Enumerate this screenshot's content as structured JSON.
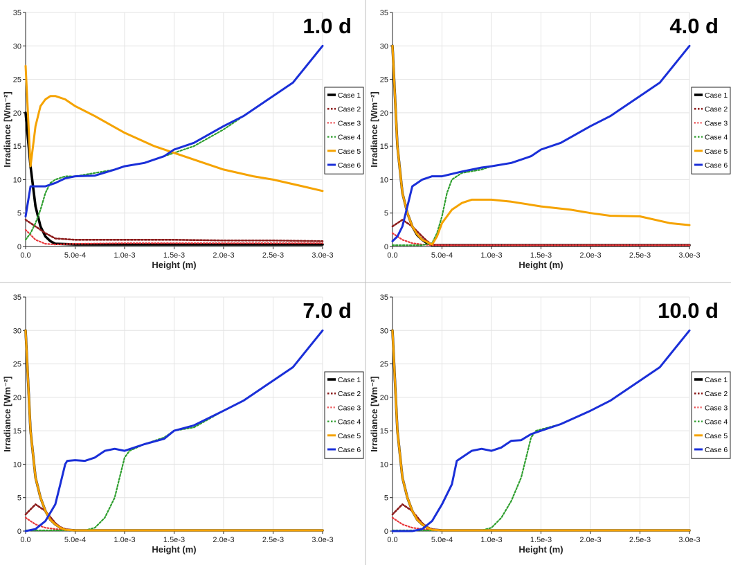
{
  "colors": {
    "Case 1": "#000000",
    "Case 2": "#8b1a1a",
    "Case 3": "#e8363a",
    "Case 4": "#2e9e2e",
    "Case 5": "#f5a300",
    "Case 6": "#1a2fd8"
  },
  "chart_data": [
    {
      "type": "line",
      "title": "1.0 d",
      "xlabel": "Height (m)",
      "ylabel": "Irradiance [Wm⁻²]",
      "xlim": [
        0,
        0.003
      ],
      "ylim": [
        0,
        35
      ],
      "xticks": [
        "0.0",
        "5.0e-4",
        "1.0e-3",
        "1.5e-3",
        "2.0e-3",
        "2.5e-3",
        "3.0e-3"
      ],
      "yticks": [
        "0",
        "5",
        "10",
        "15",
        "20",
        "25",
        "30",
        "35"
      ],
      "grid": true,
      "legend_position": "right",
      "series": [
        {
          "name": "Case 1",
          "x": [
            0,
            5e-05,
            0.0001,
            0.00015,
            0.0002,
            0.00025,
            0.0003,
            0.0005,
            0.001,
            0.0015,
            0.002,
            0.0025,
            0.003
          ],
          "y": [
            20,
            12,
            6,
            3,
            1.5,
            0.8,
            0.4,
            0.3,
            0.3,
            0.3,
            0.3,
            0.3,
            0.3
          ]
        },
        {
          "name": "Case 2",
          "x": [
            0,
            0.0001,
            0.0002,
            0.0003,
            0.0005,
            0.001,
            0.0015,
            0.002,
            0.0025,
            0.003
          ],
          "y": [
            4,
            3,
            2,
            1.2,
            1,
            1,
            1,
            0.9,
            0.9,
            0.8
          ]
        },
        {
          "name": "Case 3",
          "x": [
            0,
            0.0001,
            0.0002,
            0.0003,
            0.0005,
            0.001,
            0.0015,
            0.002,
            0.0025,
            0.003
          ],
          "y": [
            2.5,
            1,
            0.4,
            0.3,
            0.4,
            0.5,
            0.5,
            0.5,
            0.5,
            0.5
          ]
        },
        {
          "name": "Case 4",
          "x": [
            0,
            5e-05,
            0.0001,
            0.00015,
            0.0002,
            0.00025,
            0.0003,
            0.0004,
            0.0005,
            0.0007,
            0.0009,
            0.001,
            0.0012,
            0.0014,
            0.0015,
            0.0017,
            0.002,
            0.0022,
            0.0025,
            0.0027,
            0.003
          ],
          "y": [
            1,
            2,
            3.5,
            5.5,
            8,
            9.5,
            10,
            10.5,
            10.5,
            11,
            11.5,
            12,
            12.5,
            13.5,
            14,
            15,
            17.5,
            19.5,
            22.5,
            24.5,
            30
          ]
        },
        {
          "name": "Case 5",
          "x": [
            0,
            5e-05,
            0.0001,
            0.00015,
            0.0002,
            0.00025,
            0.0003,
            0.0004,
            0.0005,
            0.0007,
            0.001,
            0.0013,
            0.0015,
            0.0018,
            0.002,
            0.0023,
            0.0025,
            0.0028,
            0.003
          ],
          "y": [
            27,
            12,
            18,
            21,
            22,
            22.5,
            22.5,
            22,
            21,
            19.5,
            17,
            15,
            14,
            12.5,
            11.5,
            10.5,
            10,
            9,
            8.3
          ]
        },
        {
          "name": "Case 6",
          "x": [
            0,
            5e-05,
            0.0001,
            0.0002,
            0.0003,
            0.0004,
            0.0005,
            0.0007,
            0.0009,
            0.001,
            0.0012,
            0.0014,
            0.0015,
            0.0017,
            0.002,
            0.0022,
            0.0025,
            0.0027,
            0.003
          ],
          "y": [
            4.5,
            9,
            9,
            9,
            9.5,
            10.2,
            10.5,
            10.6,
            11.5,
            12,
            12.5,
            13.5,
            14.5,
            15.5,
            18,
            19.5,
            22.5,
            24.5,
            30
          ]
        }
      ]
    },
    {
      "type": "line",
      "title": "4.0 d",
      "xlabel": "Height (m)",
      "ylabel": "Irradiance [Wm⁻²]",
      "xlim": [
        0,
        0.003
      ],
      "ylim": [
        0,
        35
      ],
      "xticks": [
        "0.0",
        "5.0e-4",
        "1.0e-3",
        "1.5e-3",
        "2.0e-3",
        "2.5e-3",
        "3.0e-3"
      ],
      "yticks": [
        "0",
        "5",
        "10",
        "15",
        "20",
        "25",
        "30",
        "35"
      ],
      "grid": true,
      "legend_position": "right",
      "series": [
        {
          "name": "Case 1",
          "x": [
            0,
            5e-05,
            0.0001,
            0.00015,
            0.0002,
            0.00025,
            0.0003,
            0.00035,
            0.0004,
            0.0005,
            0.001,
            0.002,
            0.003
          ],
          "y": [
            30,
            15,
            8,
            5,
            3,
            1.7,
            1,
            0.5,
            0.2,
            0.2,
            0.2,
            0.2,
            0.2
          ]
        },
        {
          "name": "Case 2",
          "x": [
            0,
            0.0001,
            0.0002,
            0.0003,
            0.00035,
            0.0004,
            0.0005,
            0.001,
            0.002,
            0.003
          ],
          "y": [
            3,
            4,
            3,
            1.5,
            0.8,
            0.3,
            0.2,
            0.2,
            0.2,
            0.2
          ]
        },
        {
          "name": "Case 3",
          "x": [
            0,
            5e-05,
            0.0001,
            0.0002,
            0.0003,
            0.0004,
            0.0005,
            0.001,
            0.002,
            0.003
          ],
          "y": [
            2,
            1.5,
            1,
            0.5,
            0.3,
            0.2,
            0.2,
            0.2,
            0.2,
            0.2
          ]
        },
        {
          "name": "Case 4",
          "x": [
            0,
            0.0002,
            0.0003,
            0.0004,
            0.00045,
            0.0005,
            0.00055,
            0.0006,
            0.0007,
            0.0009,
            0.001,
            0.0012,
            0.0014,
            0.0015,
            0.0017,
            0.002,
            0.0022,
            0.0025,
            0.0027,
            0.003
          ],
          "y": [
            0.2,
            0.2,
            0.2,
            0.5,
            2,
            4.5,
            8,
            10,
            11,
            11.5,
            12,
            12.5,
            13.5,
            14.5,
            15.5,
            18,
            19.5,
            22.5,
            24.5,
            30
          ]
        },
        {
          "name": "Case 5",
          "x": [
            0,
            5e-05,
            0.0001,
            0.00015,
            0.0002,
            0.00025,
            0.0003,
            0.0004,
            0.00045,
            0.0005,
            0.0006,
            0.0007,
            0.0008,
            0.001,
            0.0012,
            0.0015,
            0.0018,
            0.002,
            0.0022,
            0.0025,
            0.0028,
            0.003
          ],
          "y": [
            30,
            15,
            8,
            5,
            3,
            1.8,
            1,
            0.3,
            1.5,
            3.5,
            5.5,
            6.5,
            7,
            7,
            6.7,
            6,
            5.5,
            5,
            4.6,
            4.5,
            3.5,
            3.2
          ]
        },
        {
          "name": "Case 6",
          "x": [
            0,
            5e-05,
            0.0001,
            0.00015,
            0.0002,
            0.00025,
            0.0003,
            0.0004,
            0.0005,
            0.0007,
            0.0009,
            0.001,
            0.0012,
            0.0014,
            0.0015,
            0.0017,
            0.002,
            0.0022,
            0.0025,
            0.0027,
            0.003
          ],
          "y": [
            0.8,
            1.5,
            3,
            6,
            9,
            9.5,
            10,
            10.5,
            10.5,
            11.2,
            11.8,
            12,
            12.5,
            13.5,
            14.5,
            15.5,
            18,
            19.5,
            22.5,
            24.5,
            30
          ]
        }
      ]
    },
    {
      "type": "line",
      "title": "7.0 d",
      "xlabel": "Height (m)",
      "ylabel": "Irradiance [Wm⁻²]",
      "xlim": [
        0,
        0.003
      ],
      "ylim": [
        0,
        35
      ],
      "xticks": [
        "0.0",
        "5.0e-4",
        "1.0e-3",
        "1.5e-3",
        "2.0e-3",
        "2.5e-3",
        "3.0e-3"
      ],
      "yticks": [
        "0",
        "5",
        "10",
        "15",
        "20",
        "25",
        "30",
        "35"
      ],
      "grid": true,
      "legend_position": "right",
      "series": [
        {
          "name": "Case 1",
          "x": [
            0,
            5e-05,
            0.0001,
            0.00015,
            0.0002,
            0.00025,
            0.0003,
            0.00035,
            0.0004,
            0.0005,
            0.001,
            0.002,
            0.003
          ],
          "y": [
            30,
            15,
            8,
            5,
            3,
            1.7,
            1,
            0.5,
            0.2,
            0.1,
            0.1,
            0.1,
            0.1
          ]
        },
        {
          "name": "Case 2",
          "x": [
            0,
            0.0001,
            0.0002,
            0.0003,
            0.00035,
            0.0004,
            0.0005,
            0.001,
            0.002,
            0.003
          ],
          "y": [
            2.5,
            4,
            3,
            1.2,
            0.6,
            0.3,
            0.1,
            0.1,
            0.1,
            0.1
          ]
        },
        {
          "name": "Case 3",
          "x": [
            0,
            5e-05,
            0.0001,
            0.0002,
            0.0003,
            0.0004,
            0.0005,
            0.001,
            0.002,
            0.003
          ],
          "y": [
            2,
            1.5,
            1,
            0.5,
            0.3,
            0.2,
            0.1,
            0.1,
            0.1,
            0.1
          ]
        },
        {
          "name": "Case 4",
          "x": [
            0,
            0.0006,
            0.0007,
            0.0008,
            0.0009,
            0.00095,
            0.001,
            0.00105,
            0.0012,
            0.0014,
            0.0015,
            0.0017,
            0.002,
            0.0022,
            0.0025,
            0.0027,
            0.003
          ],
          "y": [
            0.1,
            0.1,
            0.5,
            2,
            5,
            8,
            11,
            12,
            13,
            14,
            15,
            15.5,
            18,
            19.5,
            22.5,
            24.5,
            30
          ]
        },
        {
          "name": "Case 5",
          "x": [
            0,
            5e-05,
            0.0001,
            0.00015,
            0.0002,
            0.00025,
            0.0003,
            0.00035,
            0.0004,
            0.0005,
            0.001,
            0.002,
            0.003
          ],
          "y": [
            30,
            15,
            8,
            5,
            3,
            1.7,
            1,
            0.5,
            0.2,
            0.1,
            0.1,
            0.1,
            0.1
          ]
        },
        {
          "name": "Case 6",
          "x": [
            0,
            0.0001,
            0.0002,
            0.0003,
            0.00035,
            0.0004,
            0.00042,
            0.0005,
            0.0006,
            0.0007,
            0.0008,
            0.0009,
            0.001,
            0.0012,
            0.0014,
            0.0015,
            0.0017,
            0.002,
            0.0022,
            0.0025,
            0.0027,
            0.003
          ],
          "y": [
            0,
            0.3,
            1.5,
            4,
            7,
            10,
            10.5,
            10.6,
            10.5,
            11,
            12,
            12.3,
            12,
            13,
            13.8,
            15,
            15.8,
            18,
            19.5,
            22.5,
            24.5,
            30
          ]
        }
      ]
    },
    {
      "type": "line",
      "title": "10.0 d",
      "xlabel": "Height (m)",
      "ylabel": "Irradiance [Wm⁻²]",
      "xlim": [
        0,
        0.003
      ],
      "ylim": [
        0,
        35
      ],
      "xticks": [
        "0.0",
        "5.0e-4",
        "1.0e-3",
        "1.5e-3",
        "2.0e-3",
        "2.5e-3",
        "3.0e-3"
      ],
      "yticks": [
        "0",
        "5",
        "10",
        "15",
        "20",
        "25",
        "30",
        "35"
      ],
      "grid": true,
      "legend_position": "right",
      "series": [
        {
          "name": "Case 1",
          "x": [
            0,
            5e-05,
            0.0001,
            0.00015,
            0.0002,
            0.00025,
            0.0003,
            0.00035,
            0.0004,
            0.0005,
            0.001,
            0.002,
            0.003
          ],
          "y": [
            30,
            15,
            8,
            5,
            3,
            1.7,
            1,
            0.5,
            0.2,
            0.1,
            0.1,
            0.1,
            0.1
          ]
        },
        {
          "name": "Case 2",
          "x": [
            0,
            0.0001,
            0.0002,
            0.0003,
            0.00035,
            0.0004,
            0.0005,
            0.001,
            0.002,
            0.003
          ],
          "y": [
            2.5,
            4,
            3,
            1.2,
            0.6,
            0.3,
            0.1,
            0.1,
            0.1,
            0.1
          ]
        },
        {
          "name": "Case 3",
          "x": [
            0,
            5e-05,
            0.0001,
            0.0002,
            0.0003,
            0.0004,
            0.0005,
            0.001,
            0.002,
            0.003
          ],
          "y": [
            2,
            1.5,
            1,
            0.5,
            0.3,
            0.2,
            0.1,
            0.1,
            0.1,
            0.1
          ]
        },
        {
          "name": "Case 4",
          "x": [
            0,
            0.0009,
            0.001,
            0.0011,
            0.0012,
            0.0013,
            0.00135,
            0.0014,
            0.00145,
            0.0015,
            0.0017,
            0.002,
            0.0022,
            0.0025,
            0.0027,
            0.003
          ],
          "y": [
            0.1,
            0.1,
            0.5,
            2,
            4.5,
            8,
            11,
            14,
            15,
            15.2,
            16,
            18,
            19.5,
            22.5,
            24.5,
            30
          ]
        },
        {
          "name": "Case 5",
          "x": [
            0,
            5e-05,
            0.0001,
            0.00015,
            0.0002,
            0.00025,
            0.0003,
            0.00035,
            0.0004,
            0.0005,
            0.001,
            0.002,
            0.003
          ],
          "y": [
            30,
            15,
            8,
            5,
            3,
            1.7,
            1,
            0.5,
            0.2,
            0.1,
            0.1,
            0.1,
            0.1
          ]
        },
        {
          "name": "Case 6",
          "x": [
            0,
            0.0002,
            0.0003,
            0.0004,
            0.0005,
            0.0006,
            0.00065,
            0.0007,
            0.0008,
            0.0009,
            0.001,
            0.0011,
            0.0012,
            0.0013,
            0.0014,
            0.0015,
            0.0017,
            0.002,
            0.0022,
            0.0025,
            0.0027,
            0.003
          ],
          "y": [
            0,
            0,
            0.3,
            1.5,
            4,
            7,
            10.5,
            11,
            12,
            12.3,
            12,
            12.5,
            13.5,
            13.6,
            14.5,
            15,
            16,
            18,
            19.5,
            22.5,
            24.5,
            30
          ]
        }
      ]
    }
  ]
}
